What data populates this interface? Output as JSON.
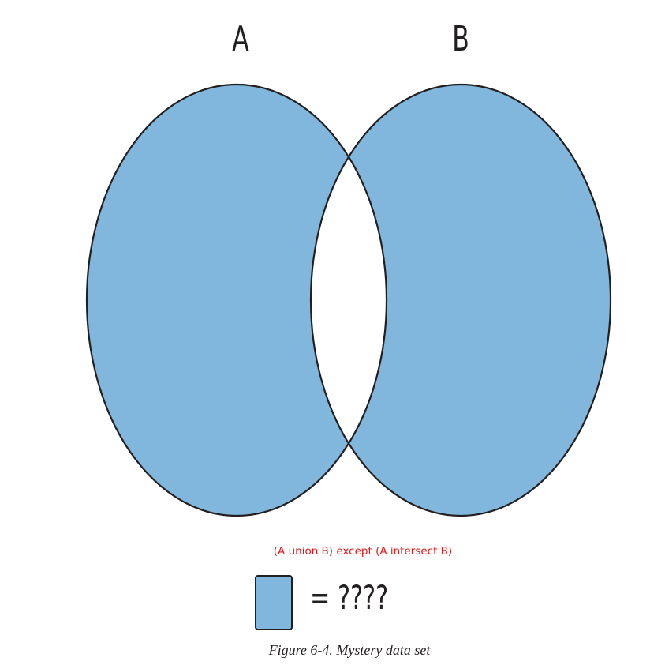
{
  "diagram": {
    "set_a_label": "A",
    "set_b_label": "B",
    "fill_color": "#82b7dd",
    "stroke_color": "#231f20",
    "annotation": "(A union B) except (A intersect B)",
    "legend_text": "= ????",
    "caption": "Figure 6-4. Mystery data set"
  },
  "colors": {
    "annotation": "#e0191b",
    "background": "#ffffff"
  }
}
